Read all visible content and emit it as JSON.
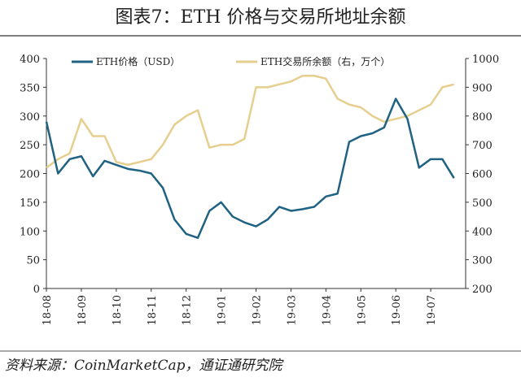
{
  "chart_data": {
    "type": "line",
    "title": "图表7：ETH 价格与交易所地址余额",
    "source": "资料来源：CoinMarketCap，通证通研究院",
    "categories": [
      "18-08",
      null,
      null,
      "18-09",
      null,
      null,
      "18-10",
      null,
      null,
      "18-11",
      null,
      null,
      "18-12",
      null,
      null,
      "19-01",
      null,
      null,
      "19-02",
      null,
      null,
      "19-03",
      null,
      null,
      "19-04",
      null,
      null,
      "19-05",
      null,
      null,
      "19-06",
      null,
      null,
      "19-07",
      null,
      null
    ],
    "series": [
      {
        "name": "ETH价格（USD）",
        "color": "#1f6283",
        "values": [
          290,
          200,
          225,
          230,
          195,
          222,
          215,
          208,
          205,
          200,
          175,
          120,
          95,
          88,
          135,
          150,
          125,
          115,
          108,
          120,
          142,
          135,
          138,
          142,
          160,
          165,
          255,
          265,
          270,
          280,
          330,
          295,
          210,
          225,
          225,
          192
        ]
      },
      {
        "name": "ETH交易所余额（右，万个）",
        "color": "#e6cf8e",
        "axis": "y2",
        "values": [
          620,
          650,
          670,
          790,
          730,
          730,
          640,
          630,
          640,
          650,
          700,
          770,
          800,
          820,
          690,
          700,
          700,
          720,
          900,
          900,
          910,
          920,
          940,
          940,
          930,
          860,
          840,
          830,
          800,
          780,
          790,
          800,
          820,
          840,
          900,
          910
        ]
      }
    ],
    "ylim": [
      0,
      400
    ],
    "yticks": [
      0,
      50,
      100,
      150,
      200,
      250,
      300,
      350,
      400
    ],
    "y2lim": [
      200,
      1000
    ],
    "y2ticks": [
      200,
      300,
      400,
      500,
      600,
      700,
      800,
      900,
      1000
    ]
  }
}
